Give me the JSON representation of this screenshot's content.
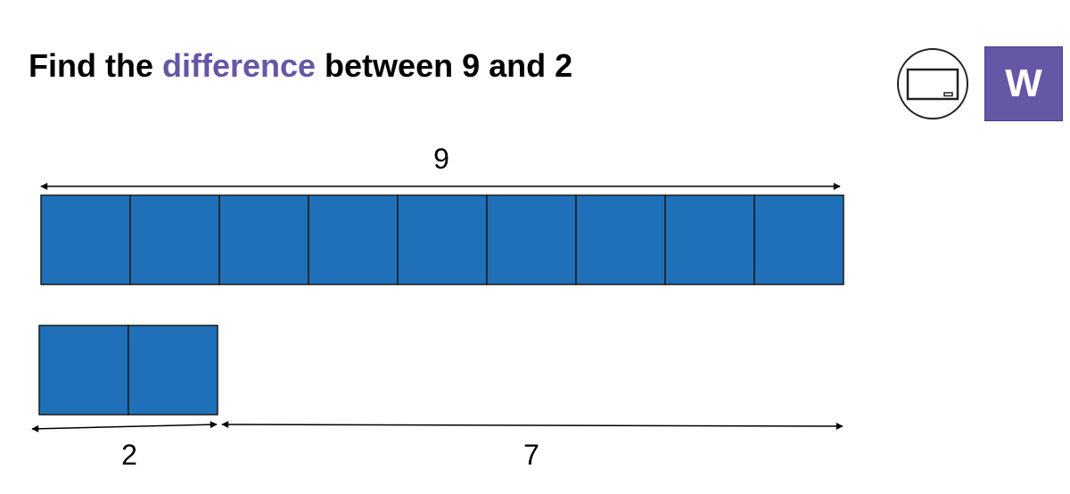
{
  "title": {
    "prefix": "Find the ",
    "highlight": "difference",
    "suffix": " between 9 and 2"
  },
  "badge": {
    "letter": "W"
  },
  "icons": {
    "whiteboard": "whiteboard-icon"
  },
  "colors": {
    "bar_fill": "#1f70b8",
    "highlight": "#6656a6",
    "badge_bg": "#6656a6"
  },
  "bar_model": {
    "whole": {
      "label": "9",
      "count": 9
    },
    "part": {
      "label": "2",
      "count": 2
    },
    "difference": {
      "label": "7"
    }
  }
}
